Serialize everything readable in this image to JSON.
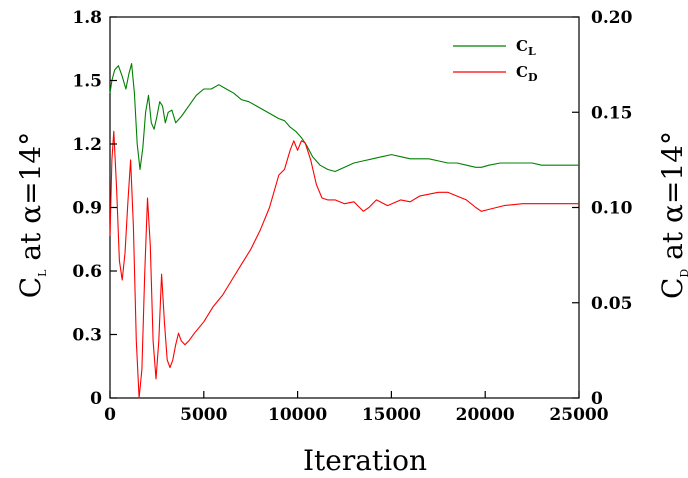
{
  "chart_data": {
    "type": "line",
    "xlabel": "Iteration",
    "ylabel_left": {
      "main": "C",
      "sub": "L",
      "rest": " at α=14°"
    },
    "ylabel_right": {
      "main": "C",
      "sub": "D",
      "rest": " at α=14°"
    },
    "xlim": [
      0,
      25000
    ],
    "ylim_left": [
      0,
      1.8
    ],
    "ylim_right": [
      0,
      0.2
    ],
    "x_ticks": [
      "0",
      "5000",
      "10000",
      "15000",
      "20000",
      "25000"
    ],
    "y_left_ticks": [
      "0",
      "0.3",
      "0.6",
      "0.9",
      "1.2",
      "1.5",
      "1.8"
    ],
    "y_right_ticks": [
      "0",
      "0.05",
      "0.10",
      "0.15",
      "0.20"
    ],
    "legend_position": "top-right",
    "grid": false,
    "series": [
      {
        "name": "CL",
        "label_main": "C",
        "label_sub": "L",
        "axis": "left",
        "color": "#008000",
        "x": [
          0,
          100,
          250,
          450,
          650,
          850,
          1000,
          1150,
          1300,
          1450,
          1600,
          1750,
          1900,
          2050,
          2200,
          2350,
          2500,
          2650,
          2800,
          2950,
          3100,
          3300,
          3500,
          3800,
          4200,
          4600,
          5000,
          5400,
          5800,
          6200,
          6600,
          7000,
          7400,
          7800,
          8200,
          8600,
          9000,
          9300,
          9600,
          9900,
          10200,
          10500,
          10800,
          11200,
          11600,
          12000,
          12500,
          13000,
          13500,
          14000,
          14500,
          15000,
          15500,
          16000,
          16500,
          17000,
          17500,
          18000,
          18500,
          19000,
          19500,
          19800,
          20200,
          20800,
          21500,
          22000,
          22500,
          23000,
          23500,
          24000,
          24500,
          25000
        ],
        "y": [
          1.44,
          1.5,
          1.55,
          1.57,
          1.52,
          1.46,
          1.53,
          1.58,
          1.44,
          1.2,
          1.08,
          1.18,
          1.35,
          1.43,
          1.3,
          1.27,
          1.33,
          1.4,
          1.38,
          1.3,
          1.35,
          1.36,
          1.3,
          1.33,
          1.38,
          1.43,
          1.46,
          1.46,
          1.48,
          1.46,
          1.44,
          1.41,
          1.4,
          1.38,
          1.36,
          1.34,
          1.32,
          1.31,
          1.28,
          1.26,
          1.23,
          1.19,
          1.14,
          1.1,
          1.08,
          1.07,
          1.09,
          1.11,
          1.12,
          1.13,
          1.14,
          1.15,
          1.14,
          1.13,
          1.13,
          1.13,
          1.12,
          1.11,
          1.11,
          1.1,
          1.09,
          1.09,
          1.1,
          1.11,
          1.11,
          1.11,
          1.11,
          1.1,
          1.1,
          1.1,
          1.1,
          1.1
        ]
      },
      {
        "name": "CD",
        "label_main": "C",
        "label_sub": "D",
        "axis": "right",
        "color": "#ff0000",
        "x": [
          0,
          100,
          200,
          350,
          500,
          650,
          800,
          950,
          1100,
          1250,
          1400,
          1550,
          1700,
          1850,
          2000,
          2150,
          2300,
          2450,
          2600,
          2750,
          2900,
          3050,
          3200,
          3350,
          3500,
          3650,
          3800,
          4000,
          4200,
          4500,
          5000,
          5500,
          6000,
          6500,
          7000,
          7500,
          8000,
          8500,
          9000,
          9300,
          9600,
          9800,
          10000,
          10200,
          10400,
          10700,
          11000,
          11300,
          11600,
          12000,
          12500,
          13000,
          13500,
          13800,
          14200,
          14800,
          15500,
          16000,
          16500,
          17000,
          17500,
          18000,
          18500,
          19000,
          19500,
          19800,
          20200,
          21000,
          22000,
          23000,
          24000,
          25000
        ],
        "y": [
          0.085,
          0.125,
          0.14,
          0.11,
          0.072,
          0.062,
          0.076,
          0.102,
          0.125,
          0.09,
          0.03,
          0.0,
          0.015,
          0.065,
          0.105,
          0.08,
          0.03,
          0.01,
          0.03,
          0.065,
          0.04,
          0.02,
          0.016,
          0.02,
          0.028,
          0.034,
          0.03,
          0.028,
          0.03,
          0.034,
          0.04,
          0.048,
          0.054,
          0.062,
          0.07,
          0.078,
          0.088,
          0.1,
          0.117,
          0.12,
          0.13,
          0.135,
          0.13,
          0.135,
          0.134,
          0.125,
          0.112,
          0.105,
          0.104,
          0.104,
          0.102,
          0.103,
          0.098,
          0.1,
          0.104,
          0.101,
          0.104,
          0.103,
          0.106,
          0.107,
          0.108,
          0.108,
          0.106,
          0.104,
          0.1,
          0.098,
          0.099,
          0.101,
          0.102,
          0.102,
          0.102,
          0.102
        ]
      }
    ]
  }
}
